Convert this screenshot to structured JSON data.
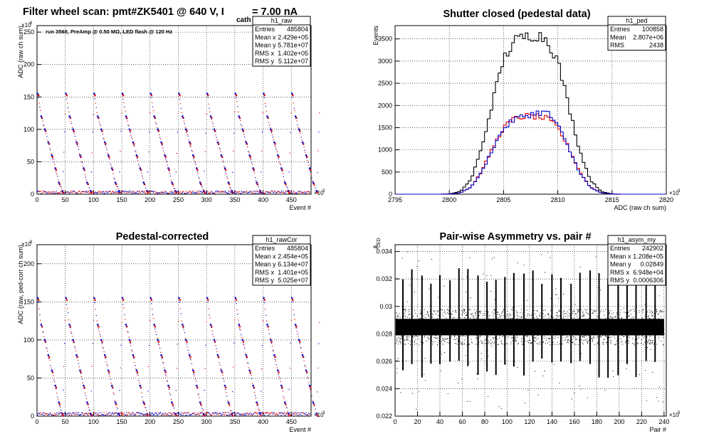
{
  "colors": {
    "axis": "#000000",
    "grid": "#000000",
    "black": "#000000",
    "red": "#e00000",
    "blue": "#0000c8",
    "background": "#ffffff"
  },
  "panels": [
    {
      "title": "Filter wheel scan: pmt#ZK5401 @   640 V, I",
      "title_sub": "cath",
      "title_tail": "   = 7.00 nA",
      "annotation": "run 3568, PreAmp @ 0.50 MΩ, LED flash @  120 Hz",
      "stats": {
        "name": "h1_raw",
        "rows": [
          [
            "Entries",
            "485804"
          ],
          [
            "Mean x",
            "2.429e+05"
          ],
          [
            "Mean y",
            "5.781e+07"
          ],
          [
            "RMS x",
            "1.402e+05"
          ],
          [
            "RMS y",
            "5.112e+07"
          ]
        ]
      },
      "xlabel": "Event #",
      "ylabel": "ADC (raw ch sum)",
      "x_exponent": "×10",
      "x_exponent_power": "3",
      "y_exponent": "×10",
      "y_exponent_power": "6",
      "xticks": [
        "0",
        "50",
        "100",
        "150",
        "200",
        "250",
        "300",
        "350",
        "400",
        "450"
      ],
      "yticks": [
        "0",
        "50",
        "100",
        "150",
        "200",
        "250"
      ]
    },
    {
      "title": "Shutter closed (pedestal data)",
      "stats": {
        "name": "h1_ped",
        "rows": [
          [
            "Entries",
            "100858"
          ],
          [
            "Mean",
            "2.807e+06"
          ],
          [
            "RMS",
            "2438"
          ]
        ]
      },
      "xlabel": "ADC (raw ch sum)",
      "ylabel": "Events",
      "x_exponent": "×10",
      "x_exponent_power": "3",
      "xticks": [
        "2795",
        "2800",
        "2805",
        "2810",
        "2815",
        "2820"
      ],
      "yticks": [
        "0",
        "500",
        "1000",
        "1500",
        "2000",
        "2500",
        "3000",
        "3500"
      ]
    },
    {
      "title": "Pedestal-corrected",
      "stats": {
        "name": "h1_rawCor",
        "rows": [
          [
            "Entries",
            "485804"
          ],
          [
            "Mean x",
            "2.454e+05"
          ],
          [
            "Mean y",
            "6.134e+07"
          ],
          [
            "RMS x",
            "1.401e+05"
          ],
          [
            "RMS y",
            "5.025e+07"
          ]
        ]
      },
      "xlabel": "Event #",
      "ylabel": "ADC (raw, ped-corr ch sum)",
      "x_exponent": "×10",
      "x_exponent_power": "3",
      "y_exponent": "×10",
      "y_exponent_power": "6",
      "xticks": [
        "0",
        "50",
        "100",
        "150",
        "200",
        "250",
        "300",
        "350",
        "400",
        "450"
      ],
      "yticks": [
        "0",
        "50",
        "100",
        "150",
        "200"
      ]
    },
    {
      "title": "Pair-wise Asymmetry vs. pair #",
      "stats": {
        "name": "h1_asym_my",
        "rows": [
          [
            "Entries",
            "242902"
          ],
          [
            "Mean x",
            "1.208e+05"
          ],
          [
            "Mean y",
            "0.02849"
          ],
          [
            "RMS x",
            "6.948e+04"
          ],
          [
            "RMS y",
            "0.0006306"
          ]
        ]
      },
      "xlabel": "Pair #",
      "ylabel": "A",
      "ylabel_sub": "LED",
      "x_exponent": "×10",
      "x_exponent_power": "3",
      "xticks": [
        "0",
        "20",
        "40",
        "60",
        "80",
        "100",
        "120",
        "140",
        "160",
        "180",
        "200",
        "220",
        "240"
      ],
      "yticks": [
        "0.022",
        "0.024",
        "0.026",
        "0.028",
        "0.03",
        "0.032",
        "0.034"
      ]
    }
  ],
  "chart_data": [
    {
      "type": "scatter",
      "title": "Filter wheel scan: pmt#ZK5401 @   640 V, I cath = 7.00 nA",
      "xlabel": "Event # (×10^3)",
      "ylabel": "ADC (raw ch sum) (×10^6)",
      "xlim": [
        0,
        485
      ],
      "ylim": [
        0,
        260
      ],
      "grid": true,
      "legend": "none",
      "period": 50,
      "step_levels": [
        155,
        120,
        100,
        80,
        60,
        40,
        18,
        5
      ],
      "marker_colors": [
        "blue",
        "red"
      ]
    },
    {
      "type": "line",
      "title": "Shutter closed (pedestal data)",
      "xlabel": "ADC (raw ch sum) (×10^3)",
      "ylabel": "Events",
      "xlim": [
        2795,
        2820
      ],
      "ylim": [
        0,
        3800
      ],
      "grid": true,
      "legend": "none",
      "x": [
        2800,
        2801,
        2802,
        2803,
        2804,
        2805,
        2806,
        2807,
        2808,
        2809,
        2810,
        2811,
        2812,
        2813,
        2814,
        2815
      ],
      "series": [
        {
          "color": "black",
          "values": [
            5,
            60,
            330,
            1050,
            2100,
            3050,
            3450,
            3550,
            3600,
            3500,
            3000,
            2000,
            1000,
            320,
            60,
            5
          ]
        },
        {
          "color": "red",
          "values": [
            3,
            30,
            160,
            520,
            1050,
            1500,
            1700,
            1760,
            1750,
            1700,
            1500,
            1050,
            520,
            160,
            30,
            3
          ]
        },
        {
          "color": "blue",
          "values": [
            3,
            30,
            160,
            500,
            1030,
            1480,
            1690,
            1770,
            1830,
            1850,
            1560,
            1030,
            500,
            150,
            30,
            3
          ]
        }
      ]
    },
    {
      "type": "scatter",
      "title": "Pedestal-corrected",
      "xlabel": "Event # (×10^3)",
      "ylabel": "ADC (raw, ped-corr ch sum) (×10^6)",
      "xlim": [
        0,
        485
      ],
      "ylim": [
        0,
        225
      ],
      "grid": true,
      "legend": "none",
      "period": 50,
      "step_levels": [
        155,
        120,
        100,
        80,
        60,
        40,
        18,
        3
      ],
      "marker_colors": [
        "blue",
        "red"
      ]
    },
    {
      "type": "scatter",
      "title": "Pair-wise Asymmetry vs. pair #",
      "xlabel": "Pair # (×10^3)",
      "ylabel": "A_LED",
      "xlim": [
        0,
        242
      ],
      "ylim": [
        0.022,
        0.0345
      ],
      "grid": true,
      "legend": "none",
      "band_center": 0.02849,
      "band_halfwidth": 0.0006,
      "spike_x": [
        7,
        15,
        24,
        32,
        40,
        49,
        57,
        65,
        74,
        82,
        90,
        98,
        106,
        115,
        123,
        131,
        140,
        148,
        157,
        165,
        174,
        182,
        190,
        199,
        207,
        215,
        224,
        232
      ],
      "marker_color": "black"
    }
  ]
}
